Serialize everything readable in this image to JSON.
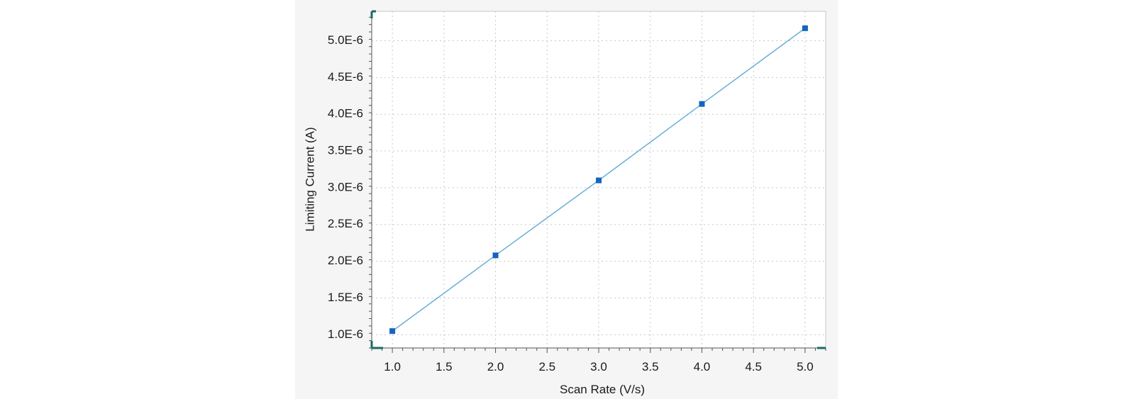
{
  "chart_data": {
    "type": "line",
    "title": "",
    "xlabel": "Scan Rate (V/s)",
    "ylabel": "Limiting Current (A)",
    "xlim": [
      0.8,
      5.2
    ],
    "ylim": [
      8.2e-07,
      5.4e-06
    ],
    "x_ticks": [
      1.0,
      1.5,
      2.0,
      2.5,
      3.0,
      3.5,
      4.0,
      4.5,
      5.0
    ],
    "x_tick_labels": [
      "1.0",
      "1.5",
      "2.0",
      "2.5",
      "3.0",
      "3.5",
      "4.0",
      "4.5",
      "5.0"
    ],
    "y_ticks": [
      1e-06,
      1.5e-06,
      2e-06,
      2.5e-06,
      3e-06,
      3.5e-06,
      4e-06,
      4.5e-06,
      5e-06
    ],
    "y_tick_labels": [
      "1.0E-6",
      "1.5E-6",
      "2.0E-6",
      "2.5E-6",
      "3.0E-6",
      "3.5E-6",
      "4.0E-6",
      "4.5E-6",
      "5.0E-6"
    ],
    "grid": true,
    "series": [
      {
        "x": [
          1.0,
          2.0,
          3.0,
          4.0,
          5.0
        ],
        "y": [
          1.05e-06,
          2.08e-06,
          3.1e-06,
          4.14e-06,
          5.17e-06
        ],
        "line_color": "#6aaed6",
        "marker_color": "#1565c0",
        "marker": "square"
      }
    ],
    "accent_color": "#1a6b66"
  }
}
